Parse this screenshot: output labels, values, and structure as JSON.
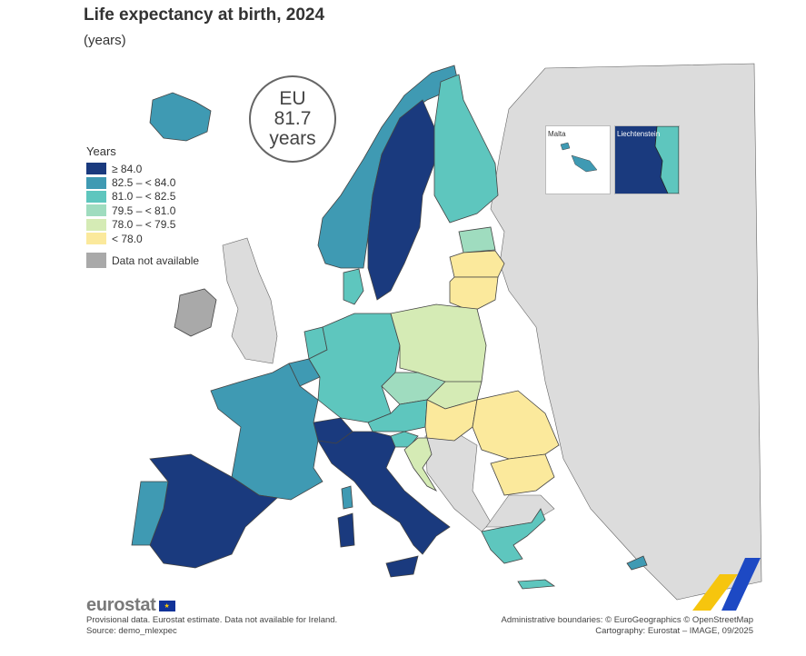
{
  "title": "Life expectancy at birth, 2024",
  "subtitle": "(years)",
  "eu_badge": {
    "line1": "EU",
    "line2": "81.7",
    "line3": "years"
  },
  "legend": {
    "title": "Years",
    "classes": [
      {
        "label": "≥ 84.0",
        "color": "#1a3a7e"
      },
      {
        "label": "82.5 – < 84.0",
        "color": "#3f9ab3"
      },
      {
        "label": "81.0 – < 82.5",
        "color": "#5ec6be"
      },
      {
        "label": "79.5 – < 81.0",
        "color": "#9fdcbf"
      },
      {
        "label": "78.0 – < 79.5",
        "color": "#d5ebb5"
      },
      {
        "label": "< 78.0",
        "color": "#fbe99c"
      }
    ],
    "na": {
      "label": "Data not available",
      "color": "#a9a9a9"
    }
  },
  "insets": {
    "malta": "Malta",
    "liechtenstein": "Liechtenstein"
  },
  "map_colors": {
    "sea": "#ffffff",
    "non_member": "#dcdcdc",
    "border": "#555555"
  },
  "regions": [
    {
      "name": "Spain",
      "class": 0
    },
    {
      "name": "Italy",
      "class": 0
    },
    {
      "name": "Sweden",
      "class": 0
    },
    {
      "name": "Switzerland",
      "class": 0
    },
    {
      "name": "Liechtenstein",
      "class": 0
    },
    {
      "name": "France",
      "class": 1
    },
    {
      "name": "Portugal",
      "class": 1
    },
    {
      "name": "Norway",
      "class": 1
    },
    {
      "name": "Iceland",
      "class": 1
    },
    {
      "name": "Belgium",
      "class": 1
    },
    {
      "name": "Luxembourg",
      "class": 1
    },
    {
      "name": "Cyprus",
      "class": 1
    },
    {
      "name": "Malta",
      "class": 1
    },
    {
      "name": "Germany",
      "class": 2
    },
    {
      "name": "Netherlands",
      "class": 2
    },
    {
      "name": "Denmark",
      "class": 2
    },
    {
      "name": "Finland",
      "class": 2
    },
    {
      "name": "Austria",
      "class": 2
    },
    {
      "name": "Greece",
      "class": 2
    },
    {
      "name": "Slovenia",
      "class": 2
    },
    {
      "name": "Czechia",
      "class": 3
    },
    {
      "name": "Estonia",
      "class": 3
    },
    {
      "name": "Poland",
      "class": 4
    },
    {
      "name": "Slovakia",
      "class": 4
    },
    {
      "name": "Croatia",
      "class": 4
    },
    {
      "name": "Latvia",
      "class": 5
    },
    {
      "name": "Lithuania",
      "class": 5
    },
    {
      "name": "Hungary",
      "class": 5
    },
    {
      "name": "Romania",
      "class": 5
    },
    {
      "name": "Bulgaria",
      "class": 5
    },
    {
      "name": "Ireland",
      "class": "na"
    }
  ],
  "footer": {
    "brand": "eurostat",
    "note": "Provisional data. Eurostat estimate. Data not available for Ireland.",
    "source": "Source: demo_mlexpec",
    "boundaries": "Administrative boundaries: © EuroGeographics © OpenStreetMap",
    "cartography": "Cartography: Eurostat – IMAGE, 09/2025"
  }
}
